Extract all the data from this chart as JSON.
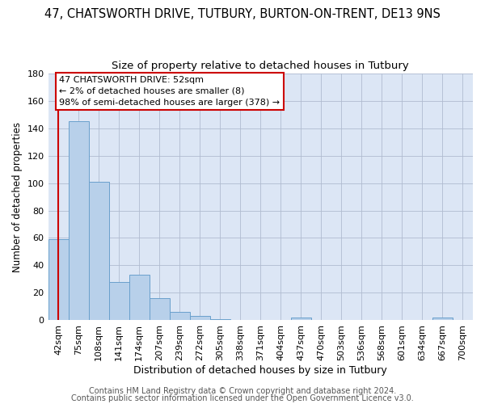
{
  "title": "47, CHATSWORTH DRIVE, TUTBURY, BURTON-ON-TRENT, DE13 9NS",
  "subtitle": "Size of property relative to detached houses in Tutbury",
  "xlabel": "Distribution of detached houses by size in Tutbury",
  "ylabel": "Number of detached properties",
  "bin_labels": [
    "42sqm",
    "75sqm",
    "108sqm",
    "141sqm",
    "174sqm",
    "207sqm",
    "239sqm",
    "272sqm",
    "305sqm",
    "338sqm",
    "371sqm",
    "404sqm",
    "437sqm",
    "470sqm",
    "503sqm",
    "536sqm",
    "568sqm",
    "601sqm",
    "634sqm",
    "667sqm",
    "700sqm"
  ],
  "bar_heights": [
    59,
    145,
    101,
    28,
    33,
    16,
    6,
    3,
    1,
    0,
    0,
    0,
    2,
    0,
    0,
    0,
    0,
    0,
    0,
    2,
    0
  ],
  "bar_color": "#b8d0ea",
  "bar_edge_color": "#6aa0cc",
  "ylim": [
    0,
    180
  ],
  "yticks": [
    0,
    20,
    40,
    60,
    80,
    100,
    120,
    140,
    160,
    180
  ],
  "property_line_color": "#cc0000",
  "annotation_box_text": "47 CHATSWORTH DRIVE: 52sqm\n← 2% of detached houses are smaller (8)\n98% of semi-detached houses are larger (378) →",
  "annotation_box_facecolor": "#ffffff",
  "annotation_box_edgecolor": "#cc0000",
  "footer_line1": "Contains HM Land Registry data © Crown copyright and database right 2024.",
  "footer_line2": "Contains public sector information licensed under the Open Government Licence v3.0.",
  "fig_background_color": "#ffffff",
  "plot_background_color": "#dce6f5",
  "title_fontsize": 10.5,
  "subtitle_fontsize": 9.5,
  "xlabel_fontsize": 9,
  "ylabel_fontsize": 8.5,
  "tick_fontsize": 8,
  "annotation_fontsize": 8,
  "footer_fontsize": 7
}
